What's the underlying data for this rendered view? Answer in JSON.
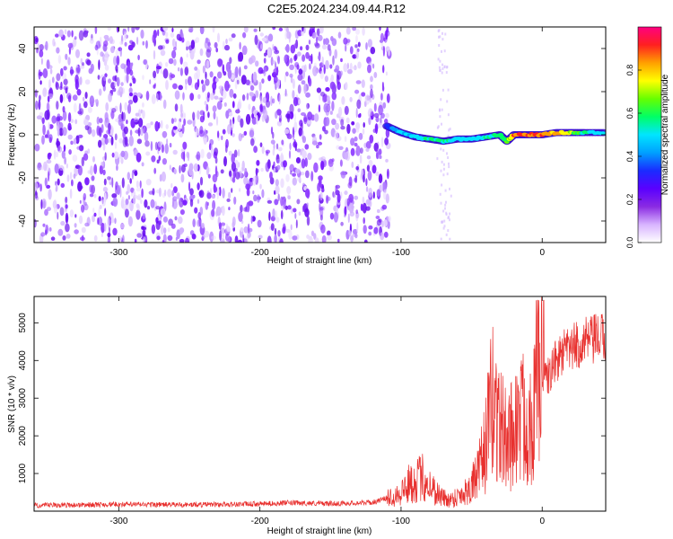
{
  "figure_title": "C2E5.2024.234.09.44.R12",
  "colors": {
    "snr_line": "#e8302e",
    "axis": "#000000",
    "spectrogram_background": "#ffffff"
  },
  "colorbar": {
    "label": "Normalized spectral amplitude",
    "range": [
      0.0,
      1.0
    ],
    "ticks": [
      0.0,
      0.2,
      0.4,
      0.6,
      0.8
    ],
    "tick_labels": [
      "0.0",
      "0.2",
      "0.4",
      "0.6",
      "0.8"
    ],
    "colormap": [
      "#ffffff",
      "#d8b4ff",
      "#8a2be2",
      "#5a00ff",
      "#1a2bff",
      "#00a0ff",
      "#00e5ff",
      "#00ff66",
      "#66ff00",
      "#ffff00",
      "#ffa000",
      "#ff2020",
      "#ff0080"
    ]
  },
  "chart_data": [
    {
      "type": "heatmap",
      "title": "C2E5.2024.234.09.44.R12",
      "xlabel": "Height of straight line (km)",
      "ylabel": "Frequency (Hz)",
      "xlim": [
        -360,
        45
      ],
      "ylim": [
        -50,
        50
      ],
      "xticks": [
        -300,
        -200,
        -100,
        0
      ],
      "xtick_labels": [
        "-300",
        "-200",
        "-100",
        "0"
      ],
      "yticks": [
        -40,
        -20,
        0,
        20,
        40
      ],
      "ytick_labels": [
        "-40",
        "-20",
        "0",
        "20",
        "40"
      ],
      "noise_region_km": [
        -360,
        -108
      ],
      "noise_amplitude": 0.1,
      "faint_column_km": [
        -75,
        -65
      ],
      "signal_trace": {
        "x": [
          -110,
          -100,
          -90,
          -80,
          -70,
          -60,
          -50,
          -40,
          -30,
          -25,
          -20,
          -10,
          0,
          10,
          20,
          30,
          45
        ],
        "frequency": [
          4,
          1,
          -1,
          -2,
          -3,
          -2,
          -2,
          -1,
          0,
          -3,
          0,
          0,
          0,
          1,
          1,
          1,
          1
        ],
        "amplitude": [
          0.3,
          0.45,
          0.5,
          0.55,
          0.55,
          0.5,
          0.5,
          0.55,
          0.6,
          0.6,
          0.85,
          0.9,
          0.85,
          0.8,
          0.7,
          0.55,
          0.45
        ]
      },
      "colorbar_label": "Normalized spectral amplitude"
    },
    {
      "type": "line",
      "xlabel": "Height of straight line (km)",
      "ylabel": "SNR (10 * v/v)",
      "xlim": [
        -360,
        45
      ],
      "ylim": [
        0,
        5700
      ],
      "xticks": [
        -300,
        -200,
        -100,
        0
      ],
      "xtick_labels": [
        "-300",
        "-200",
        "-100",
        "0"
      ],
      "yticks": [
        1000,
        2000,
        3000,
        4000,
        5000
      ],
      "ytick_labels": [
        "1000",
        "2000",
        "3000",
        "4000",
        "5000"
      ],
      "series": [
        {
          "name": "SNR",
          "x": [
            -360,
            -300,
            -250,
            -200,
            -180,
            -150,
            -120,
            -110,
            -100,
            -95,
            -90,
            -85,
            -80,
            -75,
            -70,
            -65,
            -60,
            -55,
            -50,
            -45,
            -40,
            -35,
            -30,
            -25,
            -20,
            -15,
            -10,
            -5,
            0,
            5,
            10,
            15,
            20,
            25,
            30,
            35,
            40,
            45
          ],
          "values": [
            150,
            180,
            170,
            190,
            220,
            200,
            230,
            350,
            500,
            700,
            800,
            900,
            700,
            500,
            350,
            300,
            400,
            500,
            700,
            1000,
            1800,
            3000,
            2300,
            1800,
            2200,
            2500,
            2400,
            2800,
            3400,
            3600,
            4000,
            4200,
            4300,
            4400,
            4500,
            4500,
            4600,
            4600
          ]
        }
      ]
    }
  ]
}
